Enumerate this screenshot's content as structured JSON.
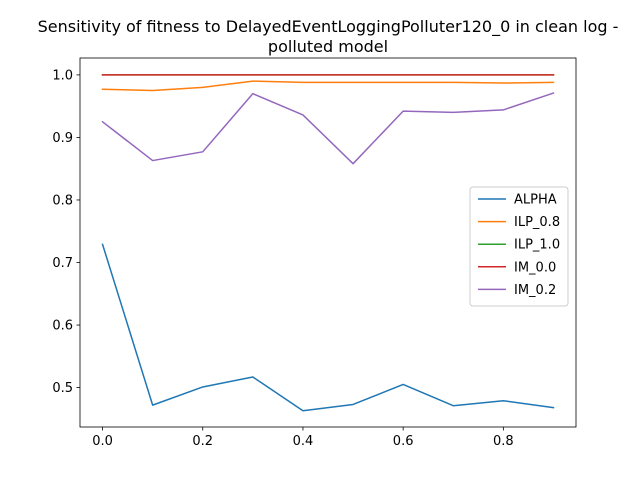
{
  "chart_data": {
    "type": "line",
    "title_line1": "Sensitivity of fitness to DelayedEventLoggingPolluter120_0 in clean log -",
    "title_line2": "polluted model",
    "xlabel": "",
    "ylabel": "",
    "x": [
      0.0,
      0.1,
      0.2,
      0.3,
      0.4,
      0.5,
      0.6,
      0.7,
      0.8,
      0.9
    ],
    "xlim": [
      -0.045,
      0.945
    ],
    "ylim": [
      0.437,
      1.027
    ],
    "x_ticks": [
      "0.0",
      "0.2",
      "0.4",
      "0.6",
      "0.8"
    ],
    "x_tick_values": [
      0.0,
      0.2,
      0.4,
      0.6,
      0.8
    ],
    "y_ticks": [
      "0.5",
      "0.6",
      "0.7",
      "0.8",
      "0.9",
      "1.0"
    ],
    "y_tick_values": [
      0.5,
      0.6,
      0.7,
      0.8,
      0.9,
      1.0
    ],
    "grid": false,
    "legend_position": "center-right",
    "series": [
      {
        "name": "ALPHA",
        "color": "#1f77b4",
        "values": [
          0.729,
          0.472,
          0.501,
          0.517,
          0.463,
          0.473,
          0.505,
          0.471,
          0.479,
          0.468
        ]
      },
      {
        "name": "ILP_0.8",
        "color": "#ff7f0e",
        "values": [
          0.977,
          0.975,
          0.98,
          0.99,
          0.988,
          0.988,
          0.988,
          0.988,
          0.987,
          0.988
        ]
      },
      {
        "name": "ILP_1.0",
        "color": "#2ca02c",
        "values": [
          1.0,
          1.0,
          1.0,
          1.0,
          1.0,
          1.0,
          1.0,
          1.0,
          1.0,
          1.0
        ]
      },
      {
        "name": "IM_0.0",
        "color": "#d62728",
        "values": [
          1.0,
          1.0,
          1.0,
          1.0,
          1.0,
          1.0,
          1.0,
          1.0,
          1.0,
          1.0
        ]
      },
      {
        "name": "IM_0.2",
        "color": "#9467bd",
        "values": [
          0.925,
          0.863,
          0.877,
          0.97,
          0.936,
          0.858,
          0.942,
          0.94,
          0.944,
          0.971
        ]
      }
    ]
  }
}
